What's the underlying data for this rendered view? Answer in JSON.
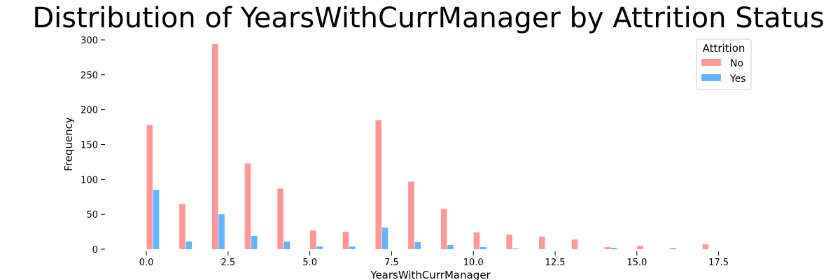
{
  "chart_data": {
    "type": "bar",
    "title": "Distribution of YearsWithCurrManager by Attrition Status",
    "xlabel": "YearsWithCurrManager",
    "ylabel": "Frequency",
    "xlim": [
      -1.2,
      18.6
    ],
    "ylim": [
      0,
      300
    ],
    "x_ticks": [
      0.0,
      2.5,
      5.0,
      7.5,
      10.0,
      12.5,
      15.0,
      17.5
    ],
    "x_tick_labels": [
      "0.0",
      "2.5",
      "5.0",
      "7.5",
      "10.0",
      "12.5",
      "15.0",
      "17.5"
    ],
    "y_ticks": [
      0,
      50,
      100,
      150,
      200,
      250,
      300
    ],
    "y_tick_labels": [
      "0",
      "50",
      "100",
      "150",
      "200",
      "250",
      "300"
    ],
    "grid": false,
    "legend": {
      "title": "Attrition",
      "placement": "top-right"
    },
    "categories": [
      0,
      1,
      2,
      3,
      4,
      5,
      6,
      7,
      8,
      9,
      10,
      11,
      12,
      13,
      14,
      15,
      16,
      17
    ],
    "series": [
      {
        "name": "No",
        "color": "#ff9999",
        "values": [
          178,
          65,
          294,
          123,
          87,
          27,
          25,
          185,
          97,
          58,
          24,
          21,
          18,
          14,
          3,
          5,
          2,
          7
        ]
      },
      {
        "name": "Yes",
        "color": "#66b3ff",
        "values": [
          85,
          11,
          50,
          19,
          11,
          4,
          4,
          31,
          10,
          6,
          3,
          1,
          0,
          0,
          2,
          0,
          0,
          0
        ]
      }
    ]
  }
}
